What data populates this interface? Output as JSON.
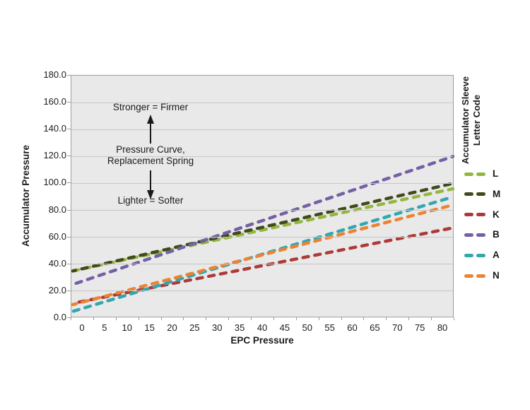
{
  "chart_data": {
    "type": "line",
    "title": "",
    "x_axis_title": "EPC Pressure",
    "y_axis_title": "Accumulator Pressure",
    "legend_title": [
      "Accumulator Sleeve",
      "Letter Code"
    ],
    "legend_position": "right",
    "line_style": "dashed",
    "grid": true,
    "plot_bg_color": "#e9e9e9",
    "gridline_color": "#c6c6c6",
    "xlim": [
      0,
      80
    ],
    "ylim": [
      0,
      180
    ],
    "y_tick_step": 20,
    "x_ticks": [
      0,
      5,
      10,
      15,
      20,
      25,
      30,
      35,
      40,
      45,
      50,
      55,
      60,
      65,
      70,
      75,
      80
    ],
    "y_tick_labels": [
      "0.0",
      "20.0",
      "40.0",
      "60.0",
      "80.0",
      "100.0",
      "120.0",
      "140.0",
      "160.0",
      "180.0"
    ],
    "series": [
      {
        "name": "L",
        "color": "#92b73e",
        "x": [
          0,
          80
        ],
        "values": [
          35,
          96
        ]
      },
      {
        "name": "M",
        "color": "#414a1d",
        "x": [
          0,
          80
        ],
        "values": [
          35,
          100
        ]
      },
      {
        "name": "K",
        "color": "#ac3a38",
        "x": [
          0,
          80
        ],
        "values": [
          11,
          67
        ]
      },
      {
        "name": "B",
        "color": "#7460a4",
        "x": [
          0,
          80
        ],
        "values": [
          25,
          120
        ]
      },
      {
        "name": "A",
        "color": "#31a7b0",
        "x": [
          0,
          80
        ],
        "values": [
          5,
          90
        ]
      },
      {
        "name": "N",
        "color": "#ec8233",
        "x": [
          0,
          80
        ],
        "values": [
          10,
          84
        ]
      }
    ],
    "annotations": {
      "stronger": "Stronger = Firmer",
      "middle_line1": "Pressure Curve,",
      "middle_line2": "Replacement Spring",
      "lighter": "Lighter = Softer"
    }
  }
}
